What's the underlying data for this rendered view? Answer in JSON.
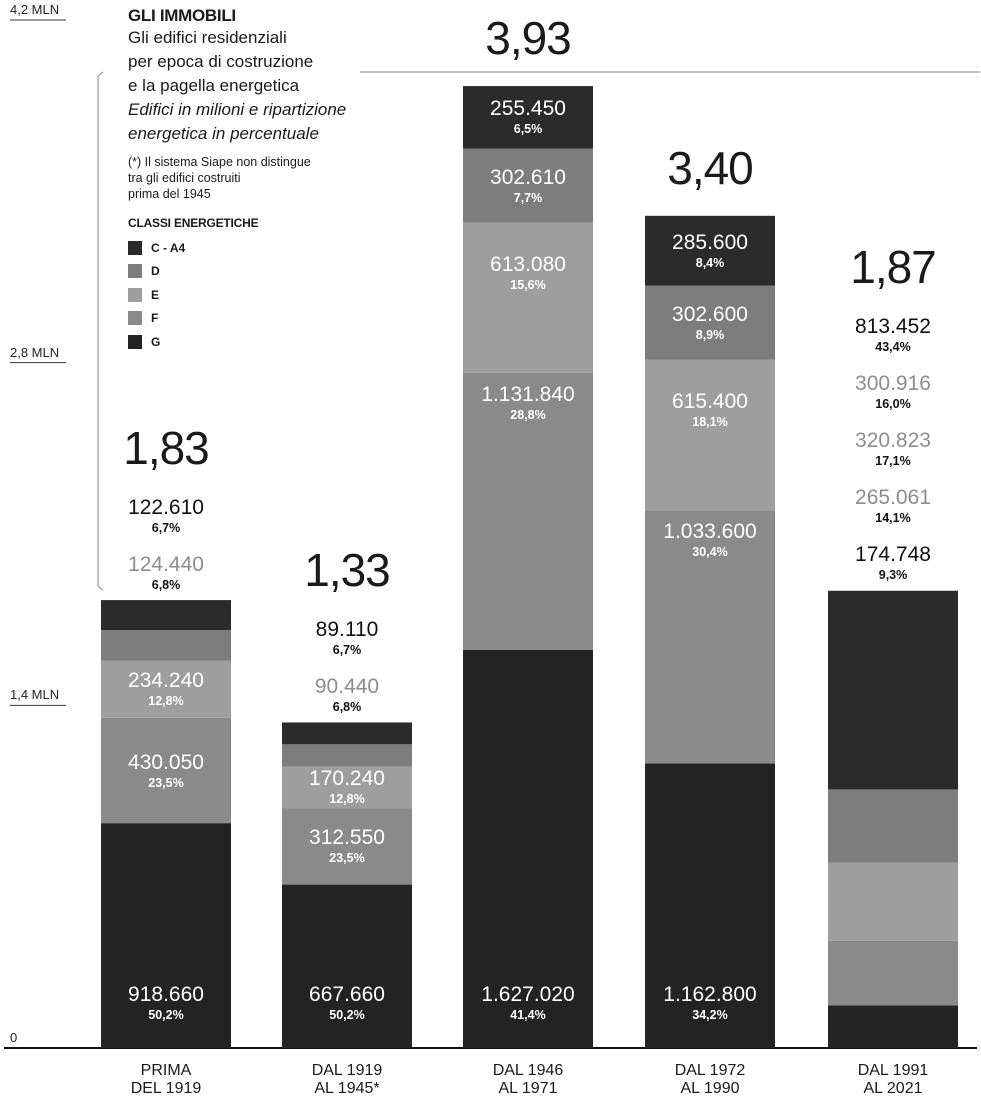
{
  "legend": {
    "title": "GLI IMMOBILI",
    "lines": [
      "Gli edifici residenziali",
      "per epoca di costruzione",
      "e la pagella energetica"
    ],
    "italic_lines": [
      "Edifici in milioni e ripartizione",
      "energetica in percentuale"
    ],
    "note_lines": [
      "(*) Il sistema Siape non distingue",
      "tra gli edifici costruiti",
      "prima del 1945"
    ],
    "classes_title": "CLASSI ENERGETICHE",
    "classes": [
      {
        "label": "C - A4",
        "color": "#2b2b2b"
      },
      {
        "label": "D",
        "color": "#7d7d7d"
      },
      {
        "label": "E",
        "color": "#9e9e9e"
      },
      {
        "label": "F",
        "color": "#8a8a8a"
      },
      {
        "label": "G",
        "color": "#232323"
      }
    ]
  },
  "chart_data": {
    "type": "bar",
    "stacked": true,
    "ylabel": "",
    "ylim": [
      0,
      4.2
    ],
    "yticks": [
      {
        "value": 0,
        "label": "0"
      },
      {
        "value": 1.4,
        "label": "1,4 MLN"
      },
      {
        "value": 2.8,
        "label": "2,8 MLN"
      },
      {
        "value": 4.2,
        "label": "4,2 MLN"
      }
    ],
    "categories": [
      [
        "PRIMA",
        "DEL 1919"
      ],
      [
        "DAL 1919",
        "AL 1945*"
      ],
      [
        "DAL 1946",
        "AL 1971"
      ],
      [
        "DAL 1972",
        "AL 1990"
      ],
      [
        "DAL 1991",
        "AL 2021"
      ]
    ],
    "totals": [
      "1,83",
      "1,33",
      "3,93",
      "3,40",
      "1,87"
    ],
    "total_values": [
      1.83,
      1.33,
      3.93,
      3.4,
      1.87
    ],
    "series_order_bottom_to_top": [
      "G",
      "F",
      "E",
      "D",
      "C - A4"
    ],
    "segments": [
      [
        {
          "cls": "G",
          "value": 918660,
          "label": "918.660",
          "pct": "50,2%",
          "fraction": 0.502
        },
        {
          "cls": "F",
          "value": 430050,
          "label": "430.050",
          "pct": "23,5%",
          "fraction": 0.235
        },
        {
          "cls": "E",
          "value": 234240,
          "label": "234.240",
          "pct": "12,8%",
          "fraction": 0.128
        },
        {
          "cls": "D",
          "value": 124440,
          "label": "124.440",
          "pct": "6,8%",
          "fraction": 0.068
        },
        {
          "cls": "C - A4",
          "value": 122610,
          "label": "122.610",
          "pct": "6,7%",
          "fraction": 0.067
        }
      ],
      [
        {
          "cls": "G",
          "value": 667660,
          "label": "667.660",
          "pct": "50,2%",
          "fraction": 0.502
        },
        {
          "cls": "F",
          "value": 312550,
          "label": "312.550",
          "pct": "23,5%",
          "fraction": 0.235
        },
        {
          "cls": "E",
          "value": 170240,
          "label": "170.240",
          "pct": "12,8%",
          "fraction": 0.128
        },
        {
          "cls": "D",
          "value": 90440,
          "label": "90.440",
          "pct": "6,8%",
          "fraction": 0.068
        },
        {
          "cls": "C - A4",
          "value": 89110,
          "label": "89.110",
          "pct": "6,7%",
          "fraction": 0.067
        }
      ],
      [
        {
          "cls": "G",
          "value": 1627020,
          "label": "1.627.020",
          "pct": "41,4%",
          "fraction": 0.414
        },
        {
          "cls": "F",
          "value": 1131840,
          "label": "1.131.840",
          "pct": "28,8%",
          "fraction": 0.288
        },
        {
          "cls": "E",
          "value": 613080,
          "label": "613.080",
          "pct": "15,6%",
          "fraction": 0.156
        },
        {
          "cls": "D",
          "value": 302610,
          "label": "302.610",
          "pct": "7,7%",
          "fraction": 0.077
        },
        {
          "cls": "C - A4",
          "value": 255450,
          "label": "255.450",
          "pct": "6,5%",
          "fraction": 0.065
        }
      ],
      [
        {
          "cls": "G",
          "value": 1162800,
          "label": "1.162.800",
          "pct": "34,2%",
          "fraction": 0.342
        },
        {
          "cls": "F",
          "value": 1033600,
          "label": "1.033.600",
          "pct": "30,4%",
          "fraction": 0.304
        },
        {
          "cls": "E",
          "value": 615400,
          "label": "615.400",
          "pct": "18,1%",
          "fraction": 0.181
        },
        {
          "cls": "D",
          "value": 302600,
          "label": "302.600",
          "pct": "8,9%",
          "fraction": 0.089
        },
        {
          "cls": "C - A4",
          "value": 285600,
          "label": "285.600",
          "pct": "8,4%",
          "fraction": 0.084
        }
      ],
      [
        {
          "cls": "G",
          "value": 174748,
          "label": "174.748",
          "pct": "9,3%",
          "fraction": 0.093
        },
        {
          "cls": "F",
          "value": 265061,
          "label": "265.061",
          "pct": "14,1%",
          "fraction": 0.141
        },
        {
          "cls": "E",
          "value": 320823,
          "label": "320.823",
          "pct": "17,1%",
          "fraction": 0.171
        },
        {
          "cls": "D",
          "value": 300916,
          "label": "300.916",
          "pct": "16,0%",
          "fraction": 0.16
        },
        {
          "cls": "C - A4",
          "value": 813452,
          "label": "813.452",
          "pct": "43,4%",
          "fraction": 0.434
        }
      ]
    ],
    "class_colors": {
      "G": "#232323",
      "F": "#8a8a8a",
      "E": "#9e9e9e",
      "D": "#7d7d7d",
      "C - A4": "#2b2b2b"
    }
  }
}
